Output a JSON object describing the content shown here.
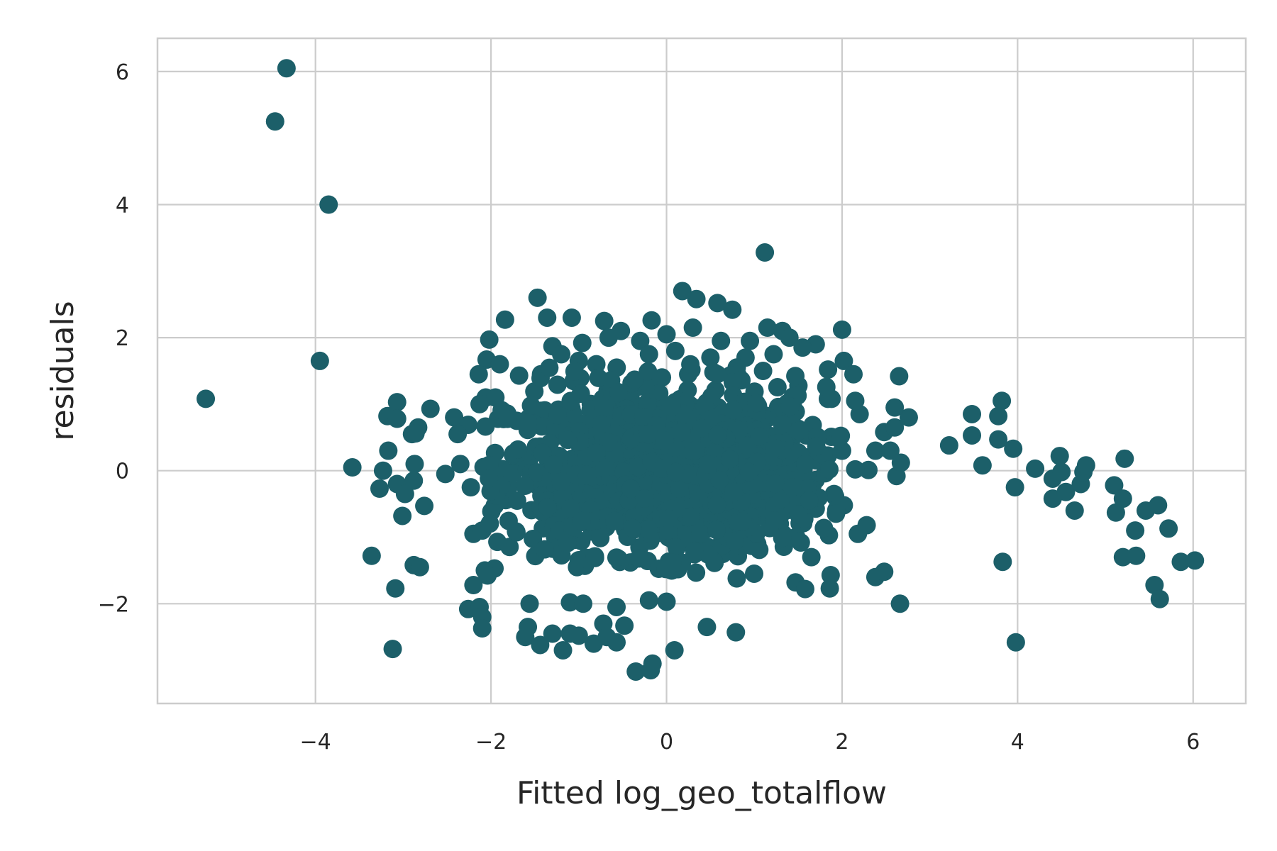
{
  "chart_data": {
    "type": "scatter",
    "title": "",
    "xlabel": "Fitted log_geo_totalflow",
    "ylabel": "residuals",
    "xlim": [
      -5.8,
      6.6
    ],
    "ylim": [
      -3.5,
      6.5
    ],
    "grid": true,
    "legend": "none",
    "colors": {
      "points": "#1c5f69",
      "grid": "#cccccc",
      "text": "#262626",
      "background": "#ffffff"
    },
    "x_ticks": [
      {
        "value": -4,
        "label": "−4"
      },
      {
        "value": -2,
        "label": "−2"
      },
      {
        "value": 0,
        "label": "0"
      },
      {
        "value": 2,
        "label": "2"
      },
      {
        "value": 4,
        "label": "4"
      },
      {
        "value": 6,
        "label": "6"
      }
    ],
    "y_ticks": [
      {
        "value": -2,
        "label": "−2"
      },
      {
        "value": 0,
        "label": "0"
      },
      {
        "value": 2,
        "label": "2"
      },
      {
        "value": 4,
        "label": "4"
      },
      {
        "value": 6,
        "label": "6"
      }
    ],
    "series": [
      {
        "points": [
          [
            -4.33,
            6.05
          ],
          [
            -4.46,
            5.25
          ],
          [
            -3.85,
            4.0
          ],
          [
            -3.95,
            1.65
          ],
          [
            -5.25,
            1.08
          ],
          [
            1.12,
            3.28
          ],
          [
            0.18,
            2.7
          ],
          [
            0.34,
            2.58
          ],
          [
            0.58,
            2.52
          ],
          [
            0.75,
            2.42
          ],
          [
            -1.47,
            2.6
          ],
          [
            -1.36,
            2.3
          ],
          [
            -1.08,
            2.3
          ],
          [
            -1.84,
            2.27
          ],
          [
            -0.71,
            2.25
          ],
          [
            -0.17,
            2.26
          ],
          [
            1.15,
            2.15
          ],
          [
            1.32,
            2.1
          ],
          [
            2.0,
            2.12
          ],
          [
            -2.02,
            1.97
          ],
          [
            -0.96,
            1.92
          ],
          [
            1.7,
            1.9
          ],
          [
            1.55,
            1.85
          ],
          [
            -1.3,
            1.87
          ],
          [
            2.02,
            1.65
          ],
          [
            -2.05,
            1.67
          ],
          [
            -1.9,
            1.6
          ],
          [
            -0.8,
            1.6
          ],
          [
            -2.14,
            1.45
          ],
          [
            2.13,
            1.45
          ],
          [
            2.65,
            1.42
          ],
          [
            -1.68,
            1.43
          ],
          [
            -1.43,
            1.45
          ],
          [
            1.84,
            1.52
          ],
          [
            1.1,
            1.5
          ],
          [
            -3.07,
            1.03
          ],
          [
            -3.18,
            0.82
          ],
          [
            -3.07,
            0.78
          ],
          [
            -2.69,
            0.93
          ],
          [
            -2.83,
            0.65
          ],
          [
            -2.86,
            0.56
          ],
          [
            -2.9,
            0.55
          ],
          [
            -2.42,
            0.8
          ],
          [
            -2.26,
            0.69
          ],
          [
            -1.92,
            0.78
          ],
          [
            -2.06,
            1.1
          ],
          [
            -1.95,
            1.1
          ],
          [
            -2.13,
            1.0
          ],
          [
            -3.17,
            0.3
          ],
          [
            -3.23,
            0.0
          ],
          [
            -3.07,
            -0.2
          ],
          [
            -3.27,
            -0.27
          ],
          [
            -2.98,
            -0.35
          ],
          [
            -2.87,
            0.1
          ],
          [
            -2.88,
            -0.15
          ],
          [
            -3.58,
            0.05
          ],
          [
            -2.76,
            -0.53
          ],
          [
            -3.01,
            -0.68
          ],
          [
            -3.36,
            -1.28
          ],
          [
            -2.88,
            -1.42
          ],
          [
            -2.81,
            -1.45
          ],
          [
            -3.09,
            -1.77
          ],
          [
            -3.12,
            -2.68
          ],
          [
            -2.52,
            -0.05
          ],
          [
            -2.35,
            0.1
          ],
          [
            -2.38,
            0.55
          ],
          [
            -2.23,
            -0.25
          ],
          [
            -2.2,
            -0.95
          ],
          [
            -2.1,
            -0.9
          ],
          [
            -2.2,
            -1.72
          ],
          [
            -2.07,
            -1.5
          ],
          [
            -2.26,
            -2.08
          ],
          [
            -2.13,
            -2.05
          ],
          [
            -2.1,
            -2.2
          ],
          [
            -2.1,
            -2.37
          ],
          [
            -1.96,
            -1.47
          ],
          [
            -1.56,
            -2.0
          ],
          [
            -1.58,
            -2.35
          ],
          [
            -1.61,
            -2.5
          ],
          [
            -1.44,
            -2.62
          ],
          [
            -1.3,
            -2.45
          ],
          [
            -1.18,
            -2.7
          ],
          [
            -1.1,
            -2.45
          ],
          [
            -1.02,
            -1.45
          ],
          [
            -1.1,
            -1.98
          ],
          [
            -0.95,
            -2.0
          ],
          [
            -1.0,
            -2.48
          ],
          [
            -0.83,
            -2.6
          ],
          [
            -0.72,
            -2.3
          ],
          [
            -0.68,
            -2.5
          ],
          [
            -0.57,
            -2.58
          ],
          [
            -0.48,
            -2.33
          ],
          [
            -0.35,
            -3.02
          ],
          [
            -0.18,
            -3.0
          ],
          [
            -0.16,
            -2.9
          ],
          [
            0.09,
            -2.7
          ],
          [
            0.46,
            -2.35
          ],
          [
            0.79,
            -2.43
          ],
          [
            -0.57,
            -2.05
          ],
          [
            -0.2,
            -1.95
          ],
          [
            0.0,
            -1.97
          ],
          [
            0.8,
            -1.62
          ],
          [
            1.47,
            -1.68
          ],
          [
            1.58,
            -1.78
          ],
          [
            1.86,
            -1.77
          ],
          [
            1.87,
            -1.57
          ],
          [
            1.65,
            -1.3
          ],
          [
            1.53,
            -1.08
          ],
          [
            1.85,
            -0.97
          ],
          [
            2.28,
            -0.82
          ],
          [
            2.18,
            -0.95
          ],
          [
            2.38,
            -1.6
          ],
          [
            2.48,
            -1.52
          ],
          [
            2.66,
            -2.0
          ],
          [
            2.62,
            -0.08
          ],
          [
            2.67,
            0.12
          ],
          [
            2.3,
            0.01
          ],
          [
            2.15,
            0.02
          ],
          [
            2.02,
            -0.52
          ],
          [
            2.0,
            0.3
          ],
          [
            2.38,
            0.3
          ],
          [
            2.55,
            0.3
          ],
          [
            2.48,
            0.58
          ],
          [
            2.6,
            0.65
          ],
          [
            2.76,
            0.8
          ],
          [
            2.6,
            0.95
          ],
          [
            2.2,
            0.85
          ],
          [
            2.15,
            1.05
          ],
          [
            1.88,
            1.08
          ],
          [
            3.22,
            0.38
          ],
          [
            3.48,
            0.85
          ],
          [
            3.48,
            0.53
          ],
          [
            3.6,
            0.08
          ],
          [
            3.78,
            0.82
          ],
          [
            3.82,
            1.05
          ],
          [
            3.78,
            0.47
          ],
          [
            3.95,
            0.33
          ],
          [
            3.97,
            -0.25
          ],
          [
            3.83,
            -1.37
          ],
          [
            3.98,
            -2.58
          ],
          [
            4.2,
            0.03
          ],
          [
            4.4,
            -0.12
          ],
          [
            4.48,
            0.22
          ],
          [
            4.5,
            -0.02
          ],
          [
            4.4,
            -0.42
          ],
          [
            4.55,
            -0.32
          ],
          [
            4.65,
            -0.6
          ],
          [
            4.72,
            -0.2
          ],
          [
            4.75,
            -0.02
          ],
          [
            4.78,
            0.08
          ],
          [
            5.1,
            -0.22
          ],
          [
            5.22,
            0.18
          ],
          [
            5.2,
            -0.42
          ],
          [
            5.12,
            -0.63
          ],
          [
            5.2,
            -1.3
          ],
          [
            5.35,
            -1.28
          ],
          [
            5.34,
            -0.9
          ],
          [
            5.46,
            -0.6
          ],
          [
            5.6,
            -0.52
          ],
          [
            5.72,
            -0.87
          ],
          [
            5.56,
            -1.72
          ],
          [
            5.62,
            -1.93
          ],
          [
            5.86,
            -1.37
          ],
          [
            6.02,
            -1.35
          ],
          [
            0.3,
            2.15
          ],
          [
            0.62,
            1.95
          ],
          [
            0.9,
            1.7
          ],
          [
            1.22,
            1.75
          ],
          [
            -0.52,
            2.1
          ],
          [
            -0.3,
            1.95
          ],
          [
            0.0,
            2.05
          ],
          [
            -0.66,
            2.0
          ],
          [
            0.95,
            1.95
          ],
          [
            1.4,
            2.0
          ],
          [
            -1.2,
            1.75
          ],
          [
            -1.0,
            1.65
          ],
          [
            -0.2,
            1.75
          ],
          [
            0.1,
            1.8
          ],
          [
            0.5,
            1.7
          ],
          [
            0.8,
            1.55
          ]
        ]
      }
    ]
  }
}
